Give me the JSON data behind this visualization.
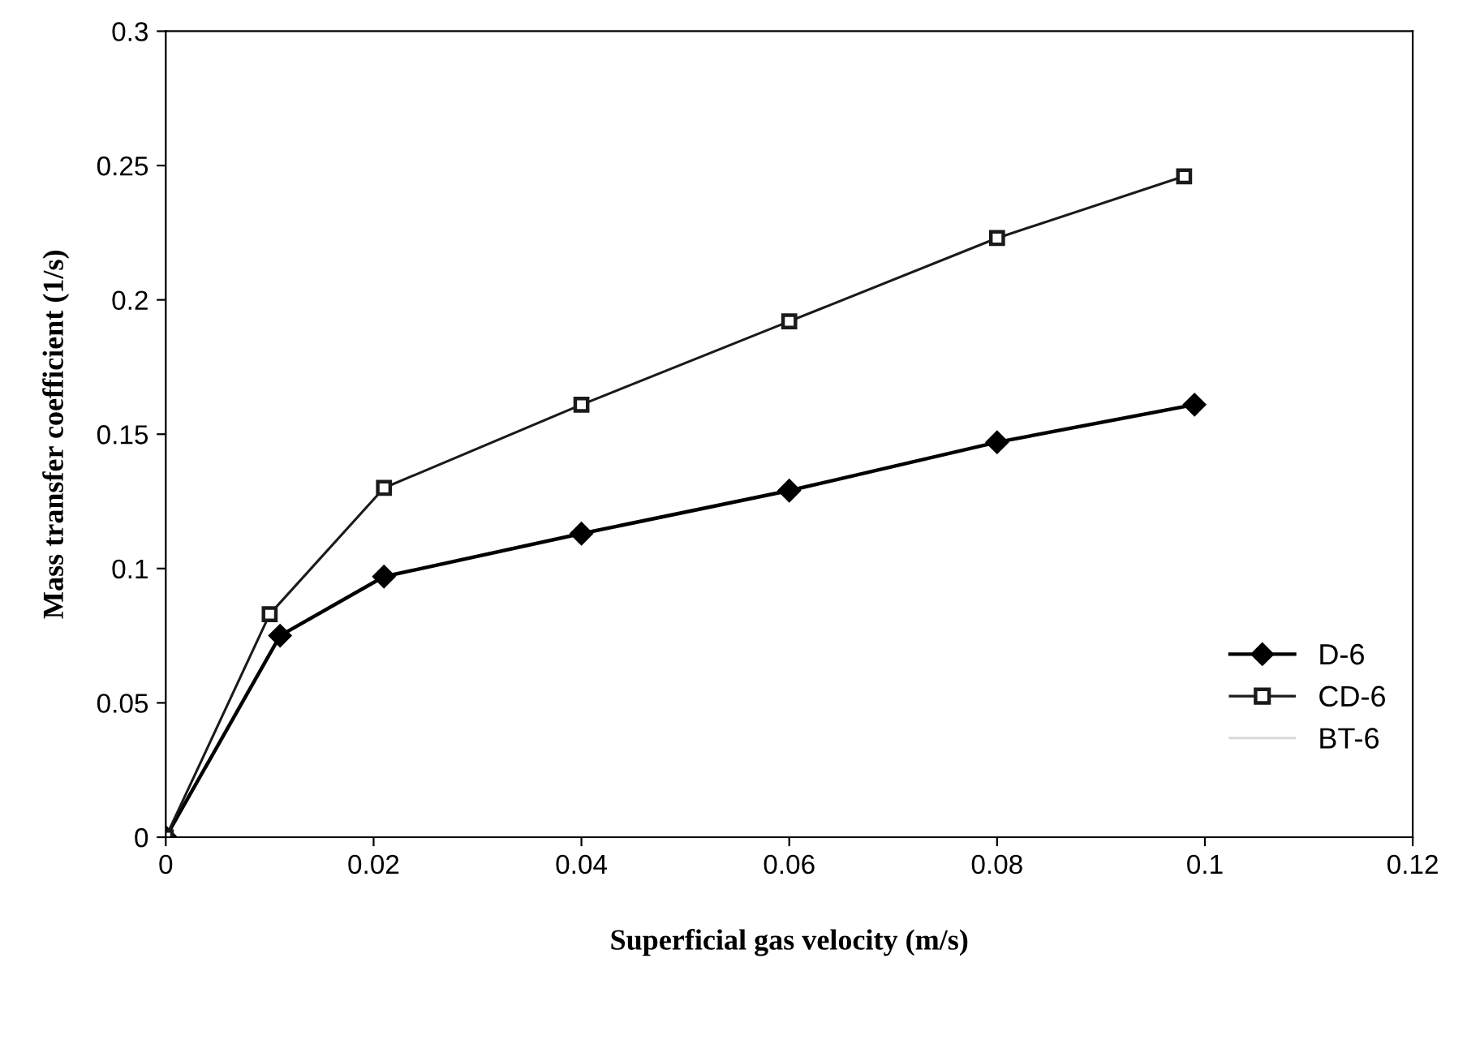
{
  "chart_data": {
    "type": "line",
    "xlabel": "Superficial gas velocity (m/s)",
    "ylabel": "Mass transfer coefficient (1/s)",
    "xlim": [
      0,
      0.12
    ],
    "xticks": [
      0,
      0.02,
      0.04,
      0.06,
      0.08,
      0.1,
      0.12
    ],
    "ylim": [
      0,
      0.3
    ],
    "yticks": [
      0,
      0.05,
      0.1,
      0.15,
      0.2,
      0.25,
      0.3
    ],
    "grid": false,
    "legend": "bottom right",
    "series": [
      {
        "name": "D-6",
        "color": "#000000",
        "marker": "diamond",
        "x": [
          0,
          0.011,
          0.021,
          0.04,
          0.06,
          0.08,
          0.099
        ],
        "values": [
          0,
          0.075,
          0.097,
          0.113,
          0.129,
          0.147,
          0.161
        ]
      },
      {
        "name": "CD-6",
        "color": "#1a1a1a",
        "marker": "square",
        "x": [
          0,
          0.01,
          0.021,
          0.04,
          0.06,
          0.08,
          0.098
        ],
        "values": [
          0,
          0.083,
          0.13,
          0.161,
          0.192,
          0.223,
          0.246
        ]
      },
      {
        "name": "BT-6",
        "color": "#d9d9d9",
        "marker": "none"
      }
    ]
  }
}
